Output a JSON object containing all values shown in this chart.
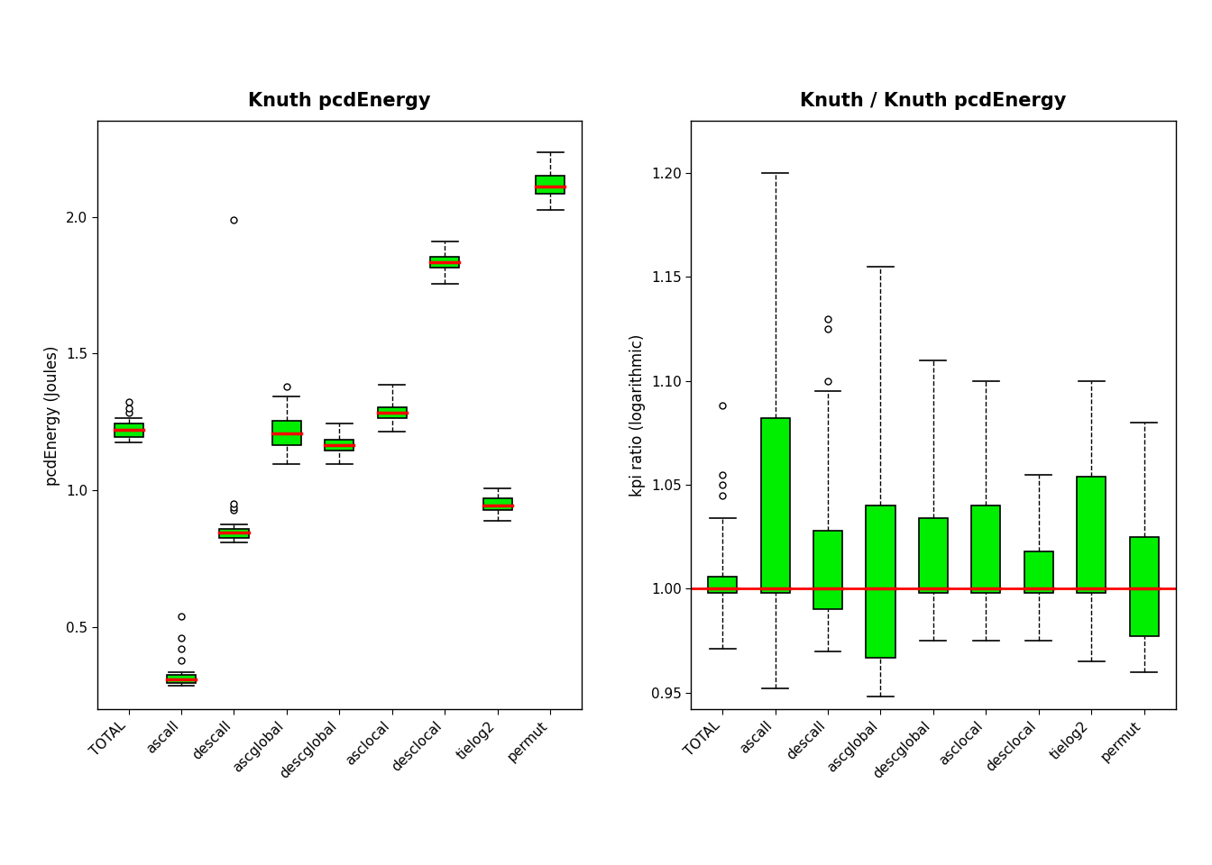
{
  "title_left": "Knuth pcdEnergy",
  "title_right": "Knuth / Knuth pcdEnergy",
  "ylabel_left": "pcdEnergy (Joules)",
  "ylabel_right": "kpi ratio (logarithmic)",
  "categories": [
    "TOTAL",
    "ascall",
    "descall",
    "ascglobal",
    "descglobal",
    "asclocal",
    "desclocal",
    "tielog2",
    "permut"
  ],
  "left_boxes": [
    {
      "med": 1.22,
      "q1": 1.195,
      "q3": 1.245,
      "whislo": 1.175,
      "whishi": 1.265,
      "fliers": [
        1.285,
        1.3,
        1.325
      ]
    },
    {
      "med": 0.31,
      "q1": 0.295,
      "q3": 0.325,
      "whislo": 0.285,
      "whishi": 0.335,
      "fliers": [
        0.38,
        0.42,
        0.46,
        0.54
      ]
    },
    {
      "med": 0.845,
      "q1": 0.825,
      "q3": 0.86,
      "whislo": 0.81,
      "whishi": 0.875,
      "fliers": [
        0.93,
        0.94,
        0.95,
        1.99
      ]
    },
    {
      "med": 1.21,
      "q1": 1.165,
      "q3": 1.255,
      "whislo": 1.095,
      "whishi": 1.345,
      "fliers": [
        1.38
      ]
    },
    {
      "med": 1.165,
      "q1": 1.145,
      "q3": 1.185,
      "whislo": 1.095,
      "whishi": 1.245,
      "fliers": []
    },
    {
      "med": 1.285,
      "q1": 1.265,
      "q3": 1.305,
      "whislo": 1.215,
      "whishi": 1.385,
      "fliers": []
    },
    {
      "med": 1.835,
      "q1": 1.815,
      "q3": 1.855,
      "whislo": 1.755,
      "whishi": 1.91,
      "fliers": []
    },
    {
      "med": 0.945,
      "q1": 0.928,
      "q3": 0.97,
      "whislo": 0.89,
      "whishi": 1.008,
      "fliers": []
    },
    {
      "med": 2.11,
      "q1": 2.085,
      "q3": 2.15,
      "whislo": 2.025,
      "whishi": 2.235,
      "fliers": []
    }
  ],
  "right_boxes": [
    {
      "med": 1.0,
      "q1": 0.998,
      "q3": 1.006,
      "whislo": 0.971,
      "whishi": 1.034,
      "fliers": [
        1.045,
        1.05,
        1.055,
        1.088
      ]
    },
    {
      "med": 1.0,
      "q1": 0.998,
      "q3": 1.082,
      "whislo": 0.952,
      "whishi": 1.2,
      "fliers": []
    },
    {
      "med": 1.0,
      "q1": 0.99,
      "q3": 1.028,
      "whislo": 0.97,
      "whishi": 1.095,
      "fliers": [
        1.1,
        1.125,
        1.13
      ]
    },
    {
      "med": 1.0,
      "q1": 0.967,
      "q3": 1.04,
      "whislo": 0.948,
      "whishi": 1.155,
      "fliers": []
    },
    {
      "med": 1.0,
      "q1": 0.998,
      "q3": 1.034,
      "whislo": 0.975,
      "whishi": 1.11,
      "fliers": []
    },
    {
      "med": 1.0,
      "q1": 0.998,
      "q3": 1.04,
      "whislo": 0.975,
      "whishi": 1.1,
      "fliers": []
    },
    {
      "med": 1.0,
      "q1": 0.998,
      "q3": 1.018,
      "whislo": 0.975,
      "whishi": 1.055,
      "fliers": []
    },
    {
      "med": 1.0,
      "q1": 0.998,
      "q3": 1.054,
      "whislo": 0.965,
      "whishi": 1.1,
      "fliers": []
    },
    {
      "med": 1.0,
      "q1": 0.977,
      "q3": 1.025,
      "whislo": 0.96,
      "whishi": 1.08,
      "fliers": []
    }
  ],
  "box_color": "#00ee00",
  "median_color_left": "#ff0000",
  "median_color_right": "#ff0000",
  "ref_line_color": "#ff0000",
  "ref_line_value": 1.0,
  "left_ylim": [
    0.2,
    2.35
  ],
  "right_ylim": [
    0.942,
    1.225
  ],
  "left_yticks": [
    0.5,
    1.0,
    1.5,
    2.0
  ],
  "right_yticks": [
    0.95,
    1.0,
    1.05,
    1.1,
    1.15,
    1.2
  ],
  "title_fontsize": 15,
  "label_fontsize": 12,
  "tick_fontsize": 11
}
